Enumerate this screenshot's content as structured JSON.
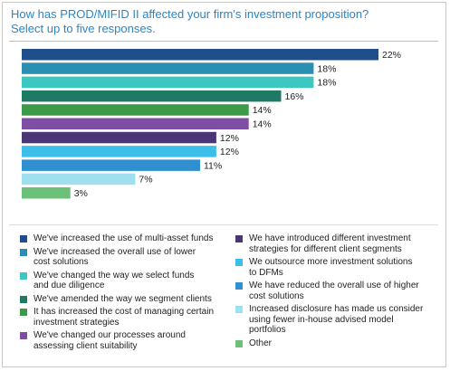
{
  "title": {
    "line1": "How has PROD/MIFID II affected your firm's investment proposition?",
    "line2": "Select up to five responses."
  },
  "chart_data": {
    "type": "bar",
    "orientation": "horizontal",
    "categories": [
      "We've increased the use of multi-asset funds",
      "We've increased the overall use of lower cost solutions",
      "We've changed the way we select funds and due diligence",
      "We've amended the way we segment clients",
      "It has increased the cost of managing certain investment strategies",
      "We've changed our processes around assessing client suitability",
      "We have introduced different investment strategies for different client segments",
      "We outsource more investment solutions to DFMs",
      "We have reduced the overall use of higher cost solutions",
      "Increased disclosure has made us consider using fewer in-house advised model portfolios",
      "Other"
    ],
    "values": [
      22,
      18,
      18,
      16,
      14,
      14,
      12,
      12,
      11,
      7,
      3
    ],
    "value_labels": [
      "22%",
      "18%",
      "18%",
      "16%",
      "14%",
      "14%",
      "12%",
      "12%",
      "11%",
      "7%",
      "3%"
    ],
    "colors": [
      "#1f4e8c",
      "#2a8fb0",
      "#3cc7c0",
      "#1e7a64",
      "#3d9a48",
      "#7e4ea4",
      "#4a3576",
      "#3bbfe8",
      "#2f8fd0",
      "#9fe0ee",
      "#6cc07a"
    ],
    "xlim": [
      0,
      22
    ],
    "grid": false,
    "legend_placement": "bottom"
  },
  "legend": {
    "left": [
      {
        "label": "We've increased the use of multi-asset funds",
        "color": "#1f4e8c"
      },
      {
        "label": "We've increased the overall use of lower\ncost solutions",
        "color": "#2a8fb0"
      },
      {
        "label": "We've changed the way we select funds\nand due diligence",
        "color": "#3cc7c0"
      },
      {
        "label": "We've amended the way we segment clients",
        "color": "#1e7a64"
      },
      {
        "label": "It has increased the cost of managing certain\ninvestment strategies",
        "color": "#3d9a48"
      },
      {
        "label": "We've changed our processes around\nassessing client suitability",
        "color": "#7e4ea4"
      }
    ],
    "right": [
      {
        "label": "We have introduced different investment\nstrategies for different client segments",
        "color": "#4a3576"
      },
      {
        "label": "We outsource more investment solutions\nto DFMs",
        "color": "#3bbfe8"
      },
      {
        "label": "We have reduced the overall use of higher\ncost solutions",
        "color": "#2f8fd0"
      },
      {
        "label": "Increased disclosure has made us consider\nusing fewer in-house advised model\nportfolios",
        "color": "#9fe0ee"
      },
      {
        "label": "Other",
        "color": "#6cc07a"
      }
    ]
  }
}
